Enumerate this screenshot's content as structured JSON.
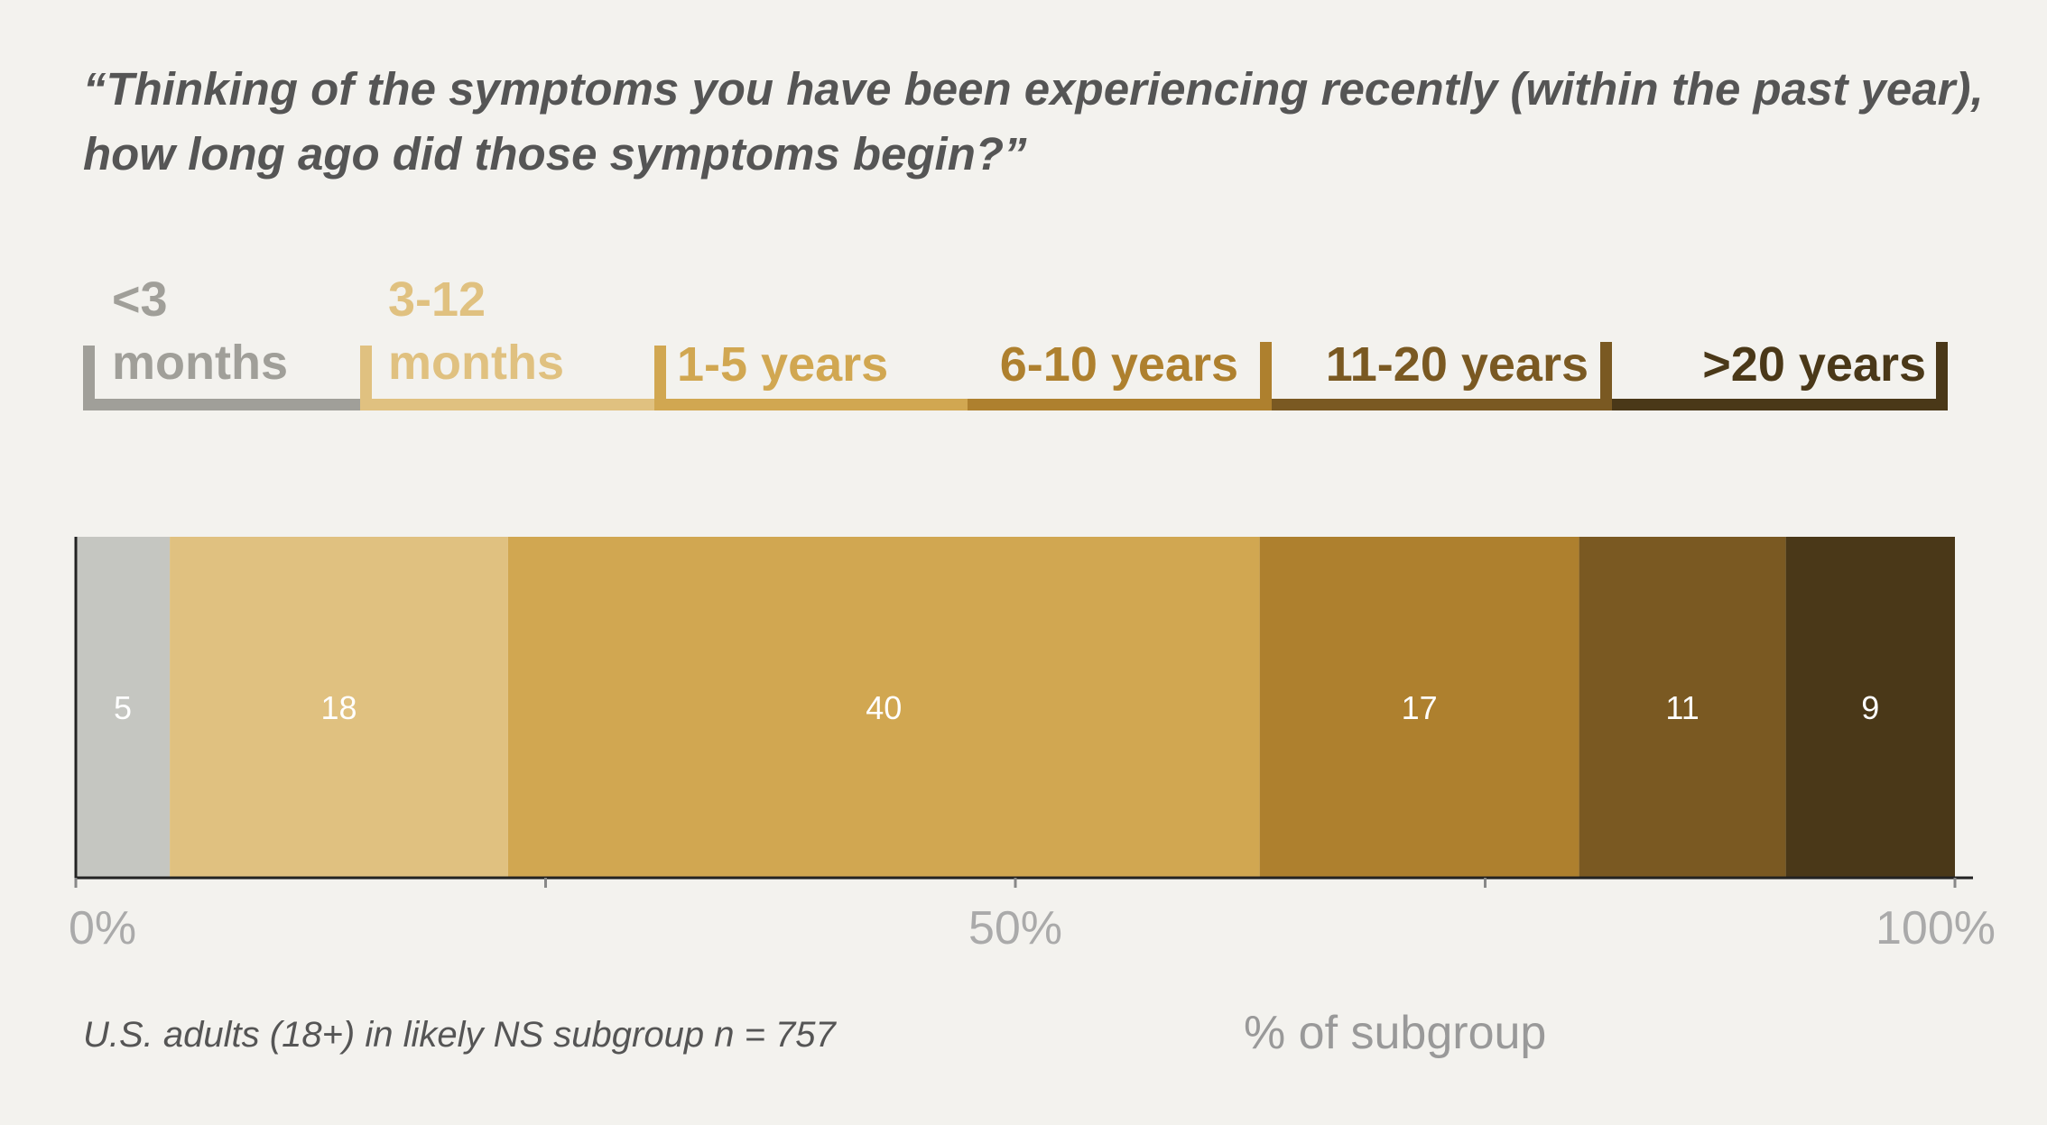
{
  "chart_data": {
    "type": "bar",
    "orientation": "horizontal-stacked",
    "title": [
      "“Thinking of the symptoms you have been experiencing recently (within the past year),",
      "how long ago did those symptoms begin?”"
    ],
    "categories": [
      "<3 months",
      "3-12 months",
      "1-5 years",
      "6-10 years",
      "11-20 years",
      ">20 years"
    ],
    "series": [
      {
        "category": "<3 months",
        "value": 5,
        "color": "#c5c6c1",
        "legend_color": "#a09f99",
        "legend_lines": [
          "<3",
          "months"
        ]
      },
      {
        "category": "3-12 months",
        "value": 18,
        "color": "#e0c180",
        "legend_color": "#e0c180",
        "legend_lines": [
          "3-12",
          "months"
        ]
      },
      {
        "category": "1-5 years",
        "value": 40,
        "color": "#d1a751",
        "legend_color": "#d1a751",
        "legend_lines": [
          "1-5 years"
        ]
      },
      {
        "category": "6-10 years",
        "value": 17,
        "color": "#ae802e",
        "legend_color": "#ae802e",
        "legend_lines": [
          "6-10 years"
        ]
      },
      {
        "category": "11-20 years",
        "value": 11,
        "color": "#7a5922",
        "legend_color": "#7a5922",
        "legend_lines": [
          "11-20 years"
        ]
      },
      {
        "category": ">20 years",
        "value": 9,
        "color": "#4a3818",
        "legend_color": "#4a3818",
        "legend_lines": [
          ">20 years"
        ]
      }
    ],
    "xlim": [
      0,
      100
    ],
    "x_ticks": [
      0,
      25,
      50,
      75,
      100
    ],
    "x_tick_labels": [
      {
        "value": 0,
        "label": "0%"
      },
      {
        "value": 50,
        "label": "50%"
      },
      {
        "value": 100,
        "label": "100%"
      }
    ],
    "xlabel": "% of subgroup",
    "footnote": "U.S. adults (18+) in likely NS subgroup n = 757",
    "grid": false,
    "legend_placement": "top, above bar"
  },
  "colors": {
    "background": "#f3f2ee",
    "axis": "#222222",
    "tick_label": "#aaaaaa",
    "title": "#555555"
  }
}
